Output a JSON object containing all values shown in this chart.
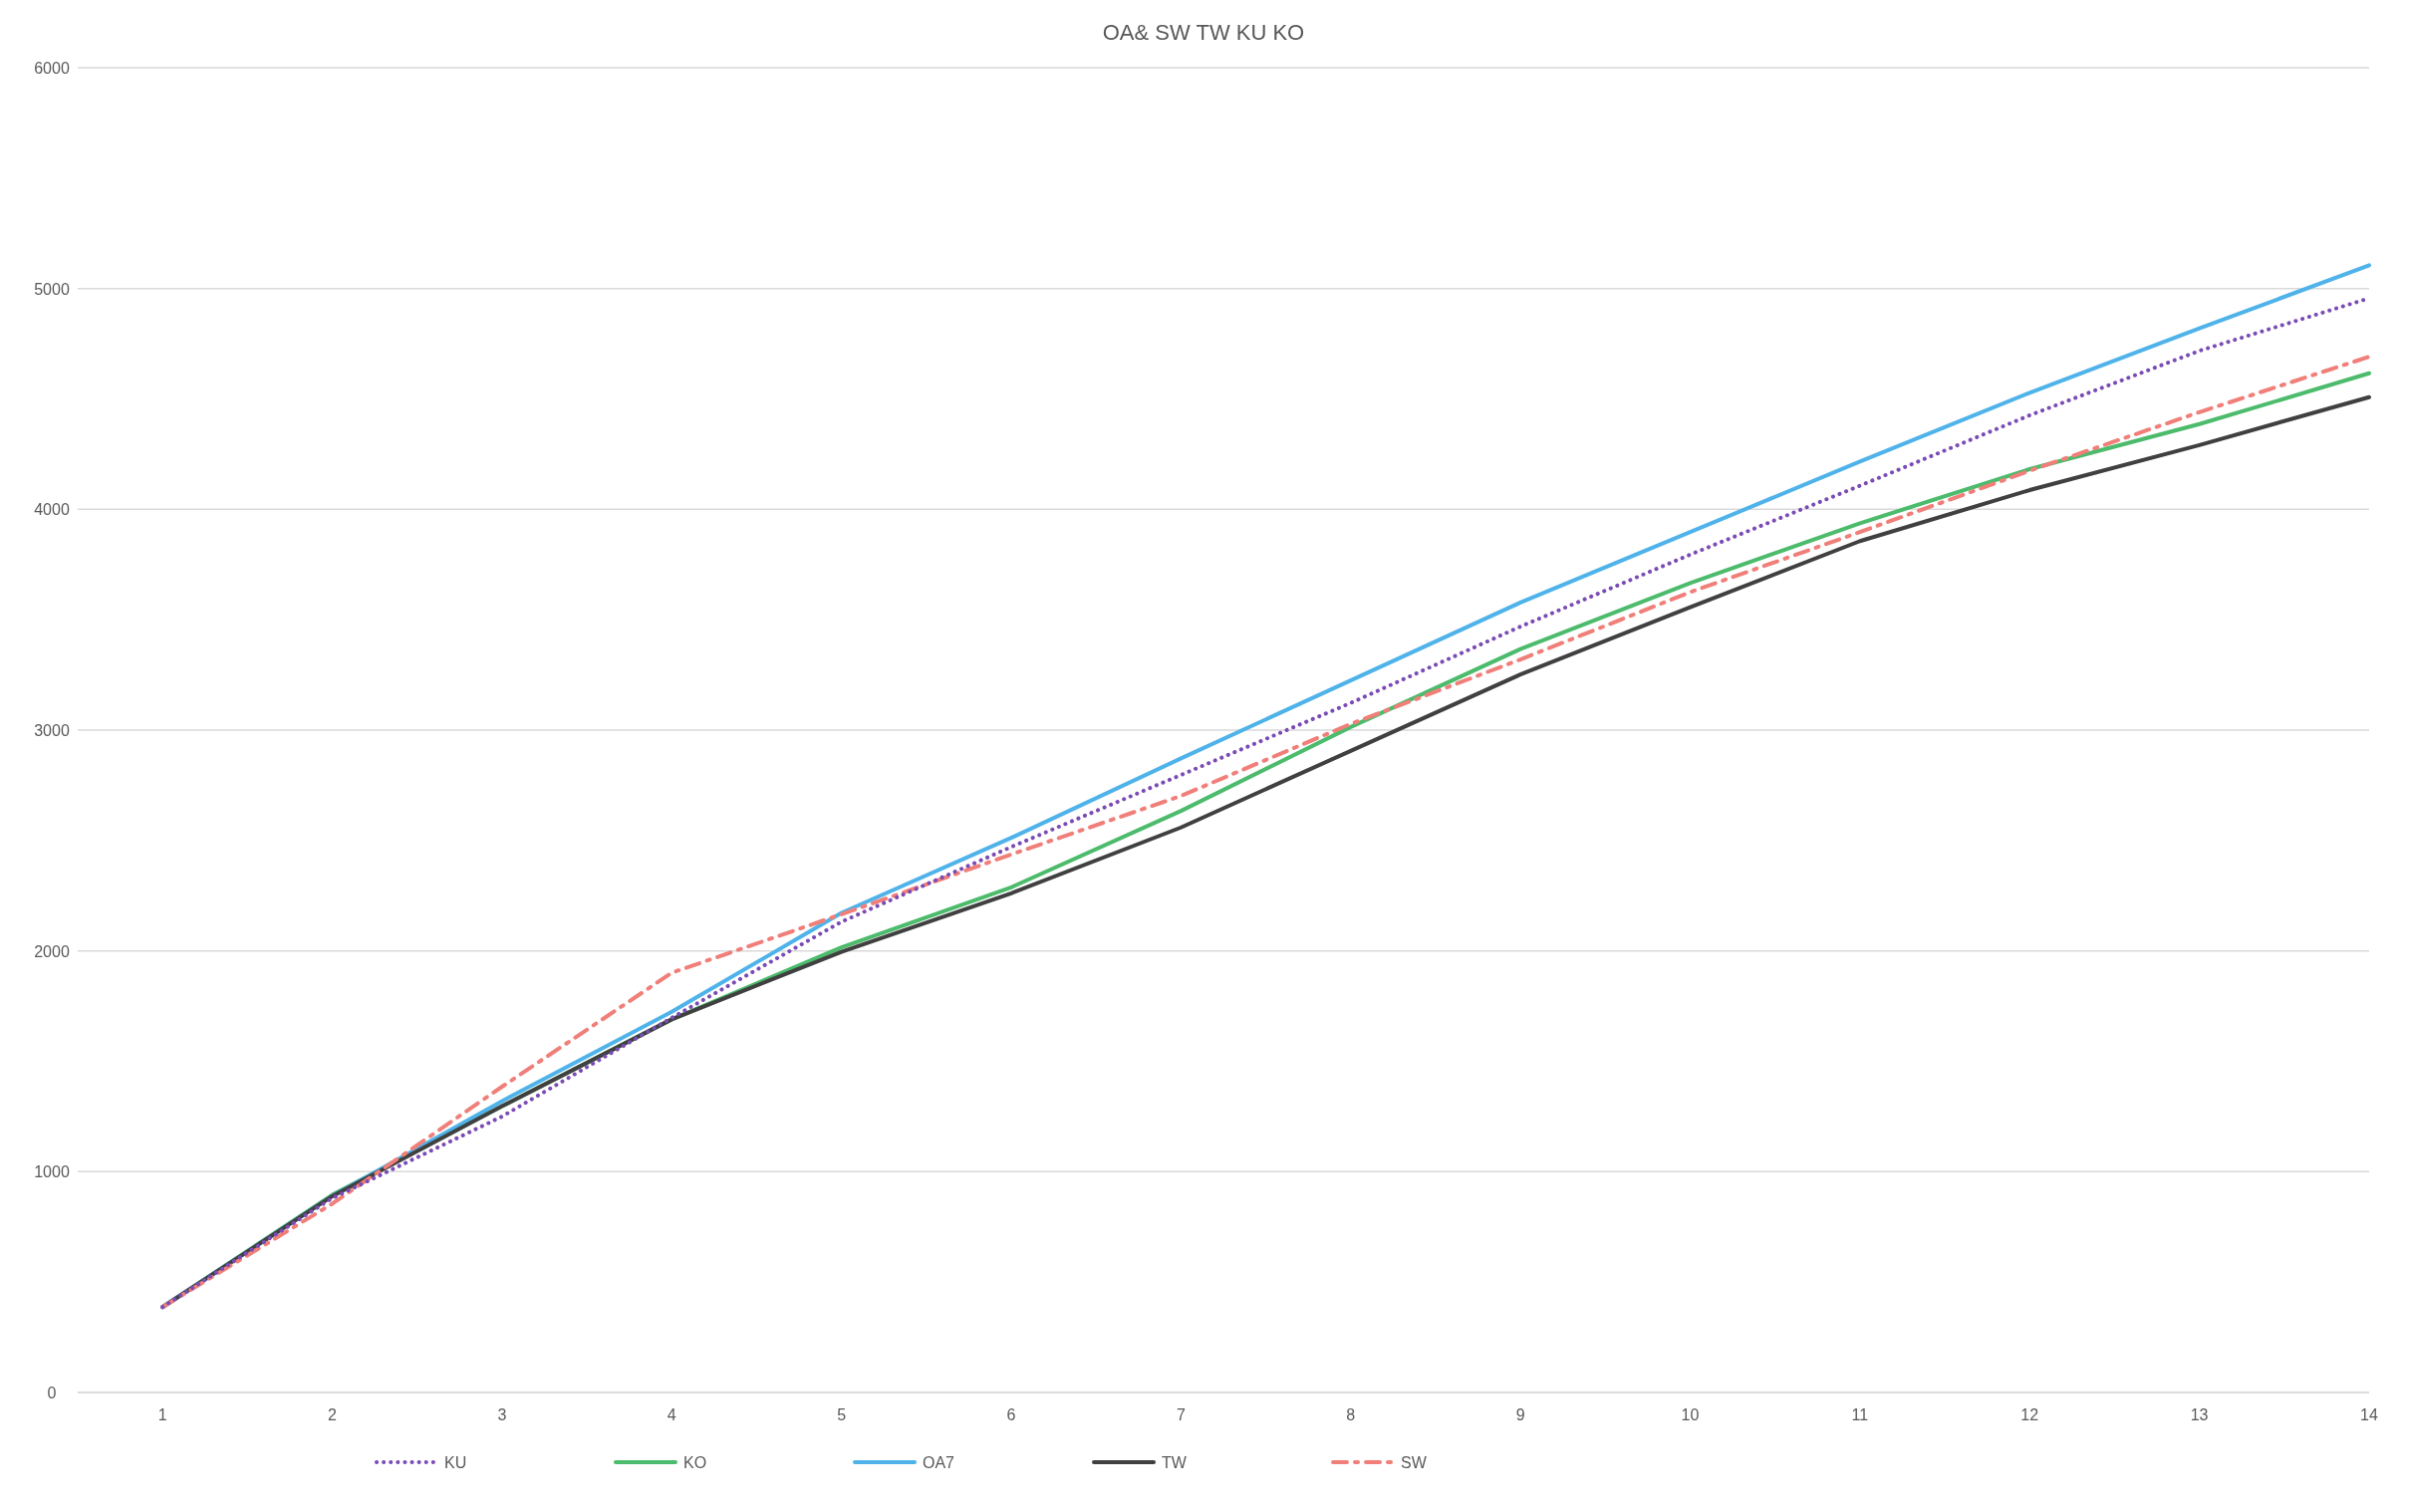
{
  "chart_data": {
    "type": "line",
    "title": "OA& SW TW KU KO",
    "x": [
      1,
      2,
      3,
      4,
      5,
      6,
      7,
      8,
      9,
      10,
      11,
      12,
      13,
      14
    ],
    "xlim": [
      0.5,
      14
    ],
    "xticks": [
      1,
      2,
      3,
      4,
      5,
      6,
      7,
      8,
      9,
      10,
      11,
      12,
      13,
      14
    ],
    "ylim": [
      0,
      6000
    ],
    "yticks": [
      0,
      1000,
      2000,
      3000,
      4000,
      5000,
      6000
    ],
    "grid": "y",
    "legend": "bottom",
    "marker": "none",
    "series": [
      {
        "name": "KU",
        "color": "#7b4bb5",
        "line_style": "dotted",
        "values": [
          387,
          880,
          1250,
          1697,
          2132,
          2471,
          2797,
          3123,
          3469,
          3795,
          4107,
          4426,
          4718,
          4956
        ]
      },
      {
        "name": "KO",
        "color": "#4cbb6c",
        "line_style": "solid",
        "values": [
          387,
          895,
          1297,
          1690,
          2016,
          2288,
          2634,
          3014,
          3367,
          3666,
          3937,
          4182,
          4386,
          4616
        ]
      },
      {
        "name": "OA7",
        "color": "#4fb3ea",
        "line_style": "solid",
        "values": [
          387,
          890,
          1320,
          1724,
          2172,
          2512,
          2872,
          3225,
          3578,
          3897,
          4216,
          4528,
          4820,
          5105
        ]
      },
      {
        "name": "TW",
        "color": "#404040",
        "line_style": "solid",
        "values": [
          387,
          889,
          1297,
          1690,
          1996,
          2261,
          2559,
          2906,
          3252,
          3557,
          3856,
          4087,
          4291,
          4508
        ]
      },
      {
        "name": "SW",
        "color": "#f07f7a",
        "line_style": "dashed",
        "values": [
          387,
          855,
          1385,
          1901,
          2166,
          2437,
          2702,
          3028,
          3320,
          3625,
          3897,
          4175,
          4440,
          4691
        ]
      }
    ]
  }
}
